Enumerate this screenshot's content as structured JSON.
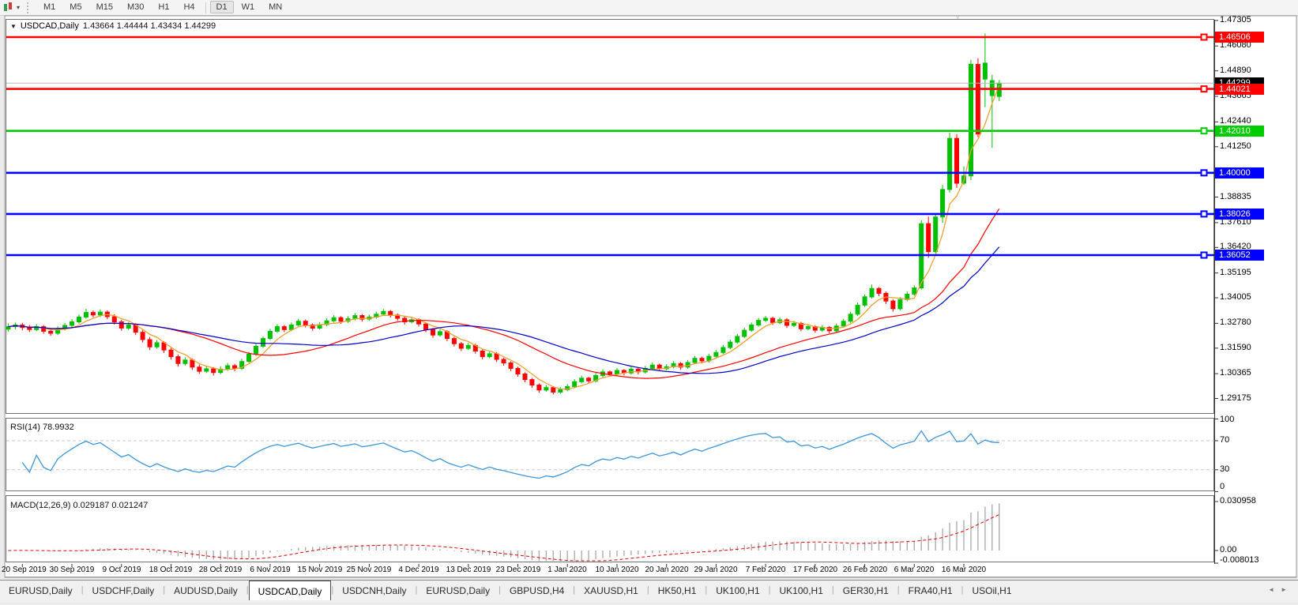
{
  "toolbar": {
    "buttons": [
      "M1",
      "M5",
      "M15",
      "M30",
      "H1",
      "H4",
      "D1",
      "W1",
      "MN"
    ],
    "active": "D1"
  },
  "icons": {
    "collapse_caret": "▼",
    "dropdown_caret": "▾",
    "tab_scroll_left": "◄",
    "tab_scroll_right": "►",
    "shift_marker": "▿"
  },
  "chart": {
    "title": "USDCAD,Daily",
    "ohlc": "1.43664 1.44444 1.43434 1.44299",
    "bid": {
      "value": 1.44299,
      "label": "1.44299",
      "line_color": "#B8B8B8",
      "label_bg": "#000000"
    },
    "axis_ticks": [
      "1.47305",
      "1.46080",
      "1.44890",
      "1.43665",
      "1.42440",
      "1.41250",
      "1.38835",
      "1.37610",
      "1.36420",
      "1.35195",
      "1.34005",
      "1.32780",
      "1.31590",
      "1.30365",
      "1.29175"
    ],
    "sr_lines": [
      {
        "price": 1.46506,
        "label": "1.46506",
        "color": "#FF0000"
      },
      {
        "price": 1.44021,
        "label": "1.44021",
        "color": "#FF0000"
      },
      {
        "price": 1.4201,
        "label": "1.42010",
        "color": "#00CC00"
      },
      {
        "price": 1.4,
        "label": "1.40000",
        "color": "#0000FF"
      },
      {
        "price": 1.38026,
        "label": "1.38026",
        "color": "#0000FF"
      },
      {
        "price": 1.36052,
        "label": "1.36052",
        "color": "#0000FF"
      }
    ],
    "colors": {
      "bull": "#00C000",
      "bear": "#FF0000",
      "ma_fast": "#F0A030",
      "ma_mid": "#FF0000",
      "ma_slow": "#0000C8"
    }
  },
  "rsi": {
    "header": "RSI(14) 78.9932",
    "period": 14,
    "value": "78.9932",
    "levels": [
      "100",
      "70",
      "30",
      "0"
    ],
    "line_color": "#3C96D8"
  },
  "macd": {
    "header": "MACD(12,26,9) 0.029187 0.021247",
    "values": [
      "0.029187",
      "0.021247"
    ],
    "axis": [
      "0.030958",
      "0.00",
      "-0.008013"
    ],
    "bar_color": "#ADADAD",
    "signal_color": "#E00000"
  },
  "tabs": {
    "items": [
      "EURUSD,Daily",
      "USDCHF,Daily",
      "AUDUSD,Daily",
      "USDCAD,Daily",
      "USDCNH,Daily",
      "EURUSD,Daily",
      "GBPUSD,H4",
      "XAUUSD,H1",
      "HK50,H1",
      "UK100,H1",
      "UK100,H1",
      "GER30,H1",
      "FRA40,H1",
      "USOil,H1"
    ],
    "active_index": 3
  },
  "chart_data": {
    "type": "candlestick",
    "symbol": "USDCAD",
    "timeframe": "Daily",
    "ylim": [
      1.29175,
      1.47305
    ],
    "x_labels": [
      "20 Sep 2019",
      "30 Sep 2019",
      "9 Oct 2019",
      "18 Oct 2019",
      "28 Oct 2019",
      "6 Nov 2019",
      "15 Nov 2019",
      "25 Nov 2019",
      "4 Dec 2019",
      "13 Dec 2019",
      "23 Dec 2019",
      "1 Jan 2020",
      "10 Jan 2020",
      "20 Jan 2020",
      "29 Jan 2020",
      "7 Feb 2020",
      "17 Feb 2020",
      "26 Feb 2020",
      "6 Mar 2020",
      "16 Mar 2020"
    ],
    "label_every_n_candles": 7,
    "first_label_candle_index": 2,
    "indicators": [
      {
        "name": "SMA-fast",
        "period": 5,
        "color": "#F0A030"
      },
      {
        "name": "SMA-mid",
        "period": 20,
        "color": "#FF0000"
      },
      {
        "name": "SMA-slow",
        "period": 30,
        "color": "#0000C8"
      },
      {
        "name": "RSI",
        "period": 14
      },
      {
        "name": "MACD",
        "fast": 12,
        "slow": 26,
        "signal": 9
      }
    ],
    "candles": [
      [
        1.325,
        1.3278,
        1.3238,
        1.3262
      ],
      [
        1.3262,
        1.3282,
        1.325,
        1.327
      ],
      [
        1.327,
        1.328,
        1.3244,
        1.3258
      ],
      [
        1.3258,
        1.327,
        1.3236,
        1.3248
      ],
      [
        1.3248,
        1.3274,
        1.324,
        1.3262
      ],
      [
        1.3262,
        1.327,
        1.3228,
        1.324
      ],
      [
        1.324,
        1.3252,
        1.3218,
        1.323
      ],
      [
        1.323,
        1.3264,
        1.3222,
        1.3252
      ],
      [
        1.3252,
        1.328,
        1.3244,
        1.3268
      ],
      [
        1.3268,
        1.3298,
        1.3258,
        1.3285
      ],
      [
        1.3285,
        1.332,
        1.3276,
        1.3308
      ],
      [
        1.3308,
        1.3348,
        1.33,
        1.333
      ],
      [
        1.333,
        1.334,
        1.3306,
        1.3318
      ],
      [
        1.3318,
        1.3345,
        1.3308,
        1.3332
      ],
      [
        1.3332,
        1.334,
        1.3298,
        1.331
      ],
      [
        1.331,
        1.3322,
        1.3272,
        1.3285
      ],
      [
        1.3285,
        1.3295,
        1.3242,
        1.3255
      ],
      [
        1.3255,
        1.3284,
        1.3246,
        1.327
      ],
      [
        1.327,
        1.3278,
        1.3222,
        1.3235
      ],
      [
        1.3235,
        1.3246,
        1.3186,
        1.32
      ],
      [
        1.32,
        1.3212,
        1.315,
        1.3165
      ],
      [
        1.3165,
        1.3198,
        1.3155,
        1.3185
      ],
      [
        1.3185,
        1.3192,
        1.3136,
        1.315
      ],
      [
        1.315,
        1.316,
        1.3104,
        1.3118
      ],
      [
        1.3118,
        1.3128,
        1.307,
        1.3085
      ],
      [
        1.3085,
        1.3115,
        1.3076,
        1.3102
      ],
      [
        1.3102,
        1.311,
        1.3054,
        1.3068
      ],
      [
        1.3068,
        1.308,
        1.3035,
        1.3048
      ],
      [
        1.3048,
        1.3075,
        1.304,
        1.306
      ],
      [
        1.306,
        1.3068,
        1.3028,
        1.3042
      ],
      [
        1.3042,
        1.3072,
        1.3034,
        1.3058
      ],
      [
        1.3058,
        1.3088,
        1.305,
        1.3075
      ],
      [
        1.3075,
        1.3084,
        1.3048,
        1.3062
      ],
      [
        1.3062,
        1.3108,
        1.3054,
        1.3095
      ],
      [
        1.3095,
        1.3142,
        1.3088,
        1.313
      ],
      [
        1.313,
        1.318,
        1.3122,
        1.3168
      ],
      [
        1.3168,
        1.3216,
        1.316,
        1.3205
      ],
      [
        1.3205,
        1.3252,
        1.3198,
        1.324
      ],
      [
        1.324,
        1.3274,
        1.3232,
        1.3262
      ],
      [
        1.3262,
        1.327,
        1.3236,
        1.3248
      ],
      [
        1.3248,
        1.3282,
        1.324,
        1.327
      ],
      [
        1.327,
        1.33,
        1.3262,
        1.3288
      ],
      [
        1.3288,
        1.3296,
        1.3258,
        1.327
      ],
      [
        1.327,
        1.3278,
        1.3242,
        1.3255
      ],
      [
        1.3255,
        1.3284,
        1.3248,
        1.3272
      ],
      [
        1.3272,
        1.3302,
        1.3264,
        1.329
      ],
      [
        1.329,
        1.3317,
        1.3282,
        1.3305
      ],
      [
        1.3305,
        1.3312,
        1.3276,
        1.3288
      ],
      [
        1.3288,
        1.3312,
        1.328,
        1.33
      ],
      [
        1.33,
        1.3327,
        1.3292,
        1.3315
      ],
      [
        1.3315,
        1.3322,
        1.3286,
        1.3298
      ],
      [
        1.3298,
        1.332,
        1.329,
        1.3308
      ],
      [
        1.3308,
        1.3334,
        1.33,
        1.3322
      ],
      [
        1.3322,
        1.3347,
        1.3314,
        1.3335
      ],
      [
        1.3335,
        1.3342,
        1.3306,
        1.3318
      ],
      [
        1.3318,
        1.3326,
        1.329,
        1.3302
      ],
      [
        1.3302,
        1.331,
        1.3272,
        1.3285
      ],
      [
        1.3285,
        1.3307,
        1.3277,
        1.3295
      ],
      [
        1.3295,
        1.3302,
        1.3262,
        1.3275
      ],
      [
        1.3275,
        1.3282,
        1.3235,
        1.3248
      ],
      [
        1.3248,
        1.3256,
        1.3208,
        1.3222
      ],
      [
        1.3222,
        1.325,
        1.3214,
        1.3238
      ],
      [
        1.3238,
        1.3246,
        1.3192,
        1.3205
      ],
      [
        1.3205,
        1.3214,
        1.3167,
        1.318
      ],
      [
        1.318,
        1.3188,
        1.3145,
        1.3158
      ],
      [
        1.3158,
        1.3184,
        1.315,
        1.3172
      ],
      [
        1.3172,
        1.318,
        1.3132,
        1.3145
      ],
      [
        1.3145,
        1.3153,
        1.3105,
        1.3118
      ],
      [
        1.3118,
        1.3144,
        1.311,
        1.3132
      ],
      [
        1.3132,
        1.314,
        1.3092,
        1.3105
      ],
      [
        1.3105,
        1.3113,
        1.3075,
        1.3088
      ],
      [
        1.3088,
        1.3096,
        1.3049,
        1.3062
      ],
      [
        1.3062,
        1.307,
        1.3022,
        1.3035
      ],
      [
        1.3035,
        1.3043,
        1.2995,
        1.3008
      ],
      [
        1.3008,
        1.3016,
        1.2969,
        1.2982
      ],
      [
        1.2982,
        1.299,
        1.2945,
        1.2958
      ],
      [
        1.2958,
        1.2982,
        1.295,
        1.297
      ],
      [
        1.297,
        1.2976,
        1.2937,
        1.2948
      ],
      [
        1.2948,
        1.2972,
        1.294,
        1.296
      ],
      [
        1.296,
        1.2987,
        1.2952,
        1.2975
      ],
      [
        1.2975,
        1.301,
        1.2967,
        1.2998
      ],
      [
        1.2998,
        1.3027,
        1.299,
        1.3015
      ],
      [
        1.3015,
        1.3022,
        1.299,
        1.3002
      ],
      [
        1.3002,
        1.304,
        1.2994,
        1.3028
      ],
      [
        1.3028,
        1.3057,
        1.302,
        1.3045
      ],
      [
        1.3045,
        1.3052,
        1.3023,
        1.3035
      ],
      [
        1.3035,
        1.3064,
        1.3027,
        1.3052
      ],
      [
        1.3052,
        1.3059,
        1.3028,
        1.304
      ],
      [
        1.304,
        1.307,
        1.3032,
        1.3058
      ],
      [
        1.3058,
        1.3065,
        1.3033,
        1.3045
      ],
      [
        1.3045,
        1.3074,
        1.3037,
        1.3062
      ],
      [
        1.3062,
        1.309,
        1.3054,
        1.3078
      ],
      [
        1.3078,
        1.3085,
        1.3048,
        1.306
      ],
      [
        1.306,
        1.3082,
        1.3052,
        1.307
      ],
      [
        1.307,
        1.3097,
        1.3062,
        1.3085
      ],
      [
        1.3085,
        1.3092,
        1.3056,
        1.3068
      ],
      [
        1.3068,
        1.3102,
        1.306,
        1.309
      ],
      [
        1.309,
        1.3122,
        1.3082,
        1.311
      ],
      [
        1.311,
        1.3118,
        1.3086,
        1.3098
      ],
      [
        1.3098,
        1.3132,
        1.309,
        1.312
      ],
      [
        1.312,
        1.315,
        1.3112,
        1.3138
      ],
      [
        1.3138,
        1.3174,
        1.313,
        1.3162
      ],
      [
        1.3162,
        1.32,
        1.3154,
        1.3188
      ],
      [
        1.3188,
        1.3227,
        1.318,
        1.3215
      ],
      [
        1.3215,
        1.3257,
        1.3207,
        1.3245
      ],
      [
        1.3245,
        1.3282,
        1.3237,
        1.327
      ],
      [
        1.327,
        1.3304,
        1.3262,
        1.3292
      ],
      [
        1.3292,
        1.3314,
        1.3284,
        1.3302
      ],
      [
        1.3302,
        1.331,
        1.327,
        1.3282
      ],
      [
        1.3282,
        1.3307,
        1.3274,
        1.3295
      ],
      [
        1.3295,
        1.3302,
        1.3256,
        1.3268
      ],
      [
        1.3268,
        1.329,
        1.326,
        1.3278
      ],
      [
        1.3278,
        1.3285,
        1.324,
        1.3252
      ],
      [
        1.3252,
        1.3274,
        1.3244,
        1.3262
      ],
      [
        1.3262,
        1.3269,
        1.3233,
        1.3245
      ],
      [
        1.3245,
        1.327,
        1.3237,
        1.3258
      ],
      [
        1.3258,
        1.3265,
        1.323,
        1.3242
      ],
      [
        1.3242,
        1.3277,
        1.3234,
        1.3265
      ],
      [
        1.3265,
        1.33,
        1.3257,
        1.3288
      ],
      [
        1.3288,
        1.3334,
        1.328,
        1.3322
      ],
      [
        1.3322,
        1.3377,
        1.3314,
        1.3365
      ],
      [
        1.3365,
        1.3417,
        1.3357,
        1.3405
      ],
      [
        1.3405,
        1.3464,
        1.3397,
        1.3445
      ],
      [
        1.3445,
        1.3452,
        1.3408,
        1.3422
      ],
      [
        1.3422,
        1.343,
        1.3371,
        1.3385
      ],
      [
        1.3385,
        1.3393,
        1.3334,
        1.3348
      ],
      [
        1.3348,
        1.3404,
        1.334,
        1.3392
      ],
      [
        1.3392,
        1.343,
        1.3384,
        1.3418
      ],
      [
        1.3418,
        1.346,
        1.341,
        1.3448
      ],
      [
        1.3448,
        1.3772,
        1.344,
        1.3756
      ],
      [
        1.3756,
        1.379,
        1.3592,
        1.3622
      ],
      [
        1.3622,
        1.38,
        1.3614,
        1.3788
      ],
      [
        1.3788,
        1.3942,
        1.376,
        1.392
      ],
      [
        1.392,
        1.4192,
        1.3905,
        1.4165
      ],
      [
        1.4165,
        1.4185,
        1.3928,
        1.395
      ],
      [
        1.395,
        1.403,
        1.3942,
        1.3985
      ],
      [
        1.3985,
        1.4542,
        1.3965,
        1.452
      ],
      [
        1.452,
        1.4549,
        1.4171,
        1.4186
      ],
      [
        1.4449,
        1.4668,
        1.4315,
        1.4526
      ],
      [
        1.437,
        1.447,
        1.412,
        1.4442
      ],
      [
        1.43664,
        1.44444,
        1.43434,
        1.44299
      ]
    ]
  }
}
